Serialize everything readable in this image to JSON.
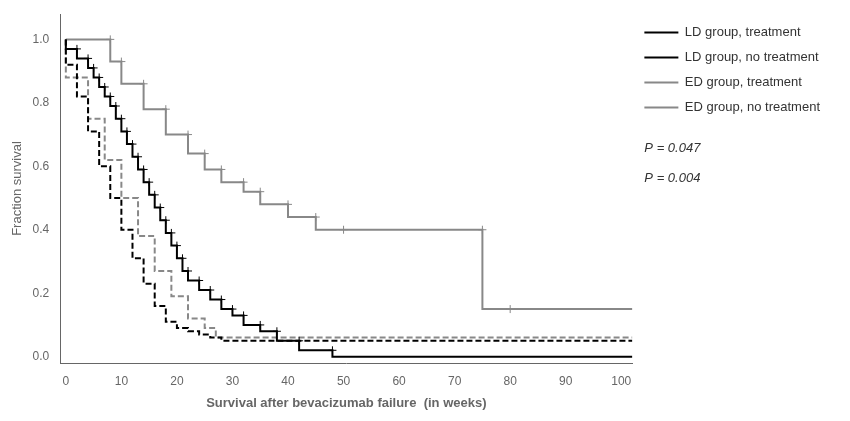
{
  "chart_data": {
    "type": "line",
    "xlabel": "Survival after bevacizumab failure  (in weeks)",
    "ylabel": "Fraction survival",
    "xlim": [
      -1,
      102
    ],
    "ylim": [
      -0.02,
      1.08
    ],
    "xticks": [
      0,
      10,
      20,
      30,
      40,
      50,
      60,
      70,
      80,
      90,
      100
    ],
    "yticks": [
      {
        "value": 0.0,
        "label": "0.0"
      },
      0.2,
      0.4,
      0.6,
      0.8,
      {
        "value": 1.0,
        "label": "1.0"
      }
    ],
    "grid": false,
    "legend": "right",
    "annotations": [
      "P = 0.047",
      "P = 0.004"
    ],
    "series": [
      {
        "name": "LD group, treatment",
        "color": "#000000",
        "line_style": "solid",
        "marker": "cross",
        "x": [
          0,
          2,
          4,
          5,
          6,
          7,
          8,
          9,
          10,
          11,
          12,
          13,
          14,
          15,
          16,
          17,
          18,
          19,
          20,
          21,
          22,
          24,
          26,
          28,
          30,
          32,
          35,
          38,
          42,
          48,
          50,
          102
        ],
        "values": [
          1.0,
          0.97,
          0.94,
          0.91,
          0.88,
          0.85,
          0.82,
          0.79,
          0.75,
          0.71,
          0.67,
          0.63,
          0.59,
          0.55,
          0.51,
          0.47,
          0.43,
          0.39,
          0.35,
          0.31,
          0.27,
          0.24,
          0.21,
          0.18,
          0.15,
          0.13,
          0.1,
          0.08,
          0.05,
          0.02,
          0.0,
          0.0
        ],
        "censor_x": [
          2,
          4,
          5,
          6,
          7,
          8,
          9,
          10,
          11,
          12,
          13,
          14,
          15,
          16,
          17,
          18,
          19,
          20,
          21,
          22,
          24,
          26,
          28,
          30,
          32,
          35,
          38,
          42,
          48
        ],
        "censor_y": [
          0.97,
          0.94,
          0.91,
          0.88,
          0.85,
          0.82,
          0.79,
          0.75,
          0.71,
          0.67,
          0.63,
          0.59,
          0.55,
          0.51,
          0.47,
          0.43,
          0.39,
          0.35,
          0.31,
          0.27,
          0.24,
          0.21,
          0.18,
          0.15,
          0.13,
          0.1,
          0.08,
          0.05,
          0.02
        ]
      },
      {
        "name": "LD group, no treatment",
        "color": "#000000",
        "line_style": "dashed",
        "x": [
          0,
          2,
          4,
          6,
          8,
          10,
          12,
          14,
          16,
          18,
          20,
          22,
          24,
          26,
          28,
          30,
          102
        ],
        "values": [
          1.0,
          0.92,
          0.82,
          0.71,
          0.6,
          0.5,
          0.4,
          0.31,
          0.23,
          0.16,
          0.11,
          0.09,
          0.08,
          0.07,
          0.06,
          0.05,
          0.05
        ]
      },
      {
        "name": "ED group, treatment",
        "color": "#888888",
        "line_style": "solid",
        "marker": "cross",
        "x": [
          0,
          8,
          10,
          14,
          18,
          22,
          25,
          28,
          32,
          35,
          40,
          45,
          50,
          75,
          80,
          102
        ],
        "values": [
          1.0,
          1.0,
          0.93,
          0.86,
          0.78,
          0.7,
          0.64,
          0.59,
          0.55,
          0.52,
          0.48,
          0.44,
          0.4,
          0.4,
          0.15,
          0.15
        ],
        "censor_x": [
          8,
          10,
          14,
          18,
          22,
          25,
          28,
          32,
          35,
          40,
          45,
          50,
          75,
          80
        ],
        "censor_y": [
          1.0,
          0.93,
          0.86,
          0.78,
          0.7,
          0.64,
          0.59,
          0.55,
          0.52,
          0.48,
          0.44,
          0.4,
          0.4,
          0.15
        ]
      },
      {
        "name": "ED group, no treatment",
        "color": "#888888",
        "line_style": "dashed",
        "x": [
          0,
          4,
          7,
          10,
          13,
          16,
          19,
          22,
          25,
          27,
          30,
          102
        ],
        "values": [
          1.0,
          0.88,
          0.75,
          0.62,
          0.5,
          0.38,
          0.27,
          0.19,
          0.12,
          0.09,
          0.06,
          0.06
        ]
      }
    ]
  }
}
